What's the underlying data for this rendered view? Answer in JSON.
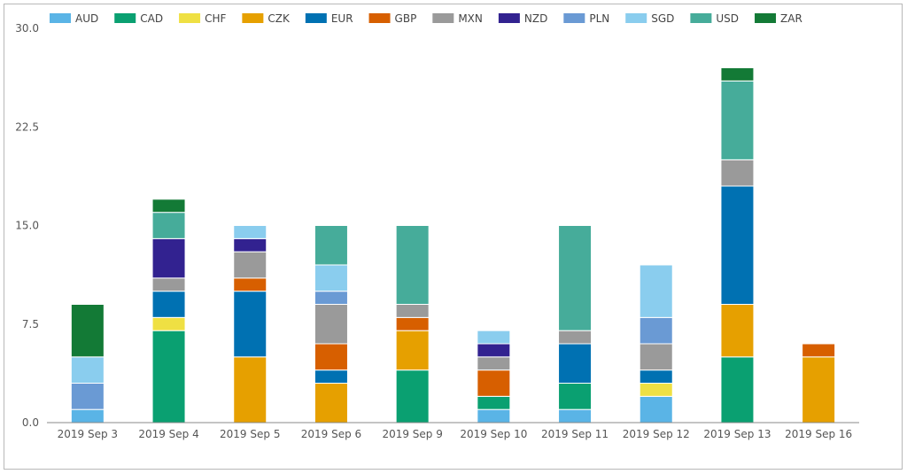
{
  "chart_data": {
    "type": "bar",
    "stacked": true,
    "categories": [
      "2019 Sep 3",
      "2019 Sep 4",
      "2019 Sep 5",
      "2019 Sep 6",
      "2019 Sep 9",
      "2019 Sep 10",
      "2019 Sep 11",
      "2019 Sep 12",
      "2019 Sep 13",
      "2019 Sep 16"
    ],
    "ylim": [
      0,
      30
    ],
    "yticks": [
      "0.0",
      "7.5",
      "15.0",
      "22.5",
      "30.0"
    ],
    "ytick_values": [
      0,
      7.5,
      15,
      22.5,
      30
    ],
    "legend_position": "top-left",
    "grid": false,
    "series": [
      {
        "name": "AUD",
        "color": "#5ab4e6",
        "values": [
          1,
          0,
          0,
          0,
          0,
          1,
          1,
          2,
          0,
          0
        ]
      },
      {
        "name": "CAD",
        "color": "#0aa071",
        "values": [
          0,
          7,
          0,
          0,
          4,
          1,
          2,
          0,
          5,
          0
        ]
      },
      {
        "name": "CHF",
        "color": "#efe043",
        "values": [
          0,
          1,
          0,
          0,
          0,
          0,
          0,
          1,
          0,
          0
        ]
      },
      {
        "name": "CZK",
        "color": "#e6a000",
        "values": [
          0,
          0,
          5,
          3,
          3,
          0,
          0,
          0,
          4,
          5
        ]
      },
      {
        "name": "EUR",
        "color": "#0071b2",
        "values": [
          0,
          2,
          5,
          1,
          0,
          0,
          3,
          1,
          9,
          0
        ]
      },
      {
        "name": "GBP",
        "color": "#d75f00",
        "values": [
          0,
          0,
          1,
          2,
          1,
          2,
          0,
          0,
          0,
          1
        ]
      },
      {
        "name": "MXN",
        "color": "#9a9a9a",
        "values": [
          0,
          1,
          2,
          3,
          1,
          1,
          1,
          2,
          2,
          0
        ]
      },
      {
        "name": "NZD",
        "color": "#322290",
        "values": [
          0,
          3,
          1,
          0,
          0,
          1,
          0,
          0,
          0,
          0
        ]
      },
      {
        "name": "PLN",
        "color": "#6a9ad4",
        "values": [
          2,
          0,
          0,
          1,
          0,
          0,
          0,
          2,
          0,
          0
        ]
      },
      {
        "name": "SGD",
        "color": "#8acdee",
        "values": [
          2,
          0,
          1,
          2,
          0,
          1,
          0,
          4,
          0,
          0
        ]
      },
      {
        "name": "USD",
        "color": "#46ac9a",
        "values": [
          0,
          2,
          0,
          3,
          6,
          0,
          8,
          0,
          6,
          0
        ]
      },
      {
        "name": "ZAR",
        "color": "#137a36",
        "values": [
          4,
          1,
          0,
          0,
          0,
          0,
          0,
          0,
          1,
          0
        ]
      }
    ]
  }
}
